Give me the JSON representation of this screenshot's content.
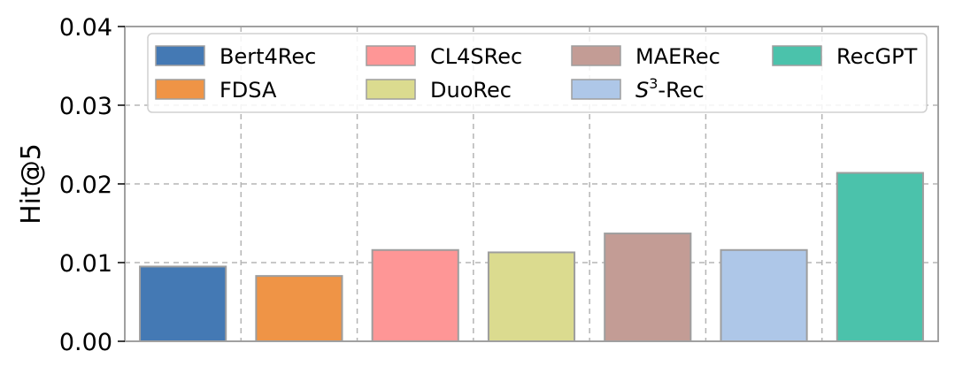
{
  "chart_data": {
    "type": "bar",
    "title": "",
    "xlabel": "",
    "ylabel": "Hit@5",
    "ylim": [
      0,
      0.04
    ],
    "yticks": [
      "0.00",
      "0.01",
      "0.02",
      "0.03",
      "0.04"
    ],
    "grid": true,
    "legend_position": "top",
    "series": [
      {
        "name": "Bert4Rec",
        "value": 0.0095,
        "color": "#4479b4"
      },
      {
        "name": "FDSA",
        "value": 0.0083,
        "color": "#ef9446"
      },
      {
        "name": "CL4SRec",
        "value": 0.0116,
        "color": "#fe9696"
      },
      {
        "name": "DuoRec",
        "value": 0.0113,
        "color": "#dbdb8f"
      },
      {
        "name": "MAERec",
        "value": 0.0137,
        "color": "#c39c95"
      },
      {
        "name": "S3-Rec",
        "value": 0.0116,
        "color": "#aec7e8"
      },
      {
        "name": "RecGPT",
        "value": 0.0214,
        "color": "#4bc2ab"
      }
    ]
  }
}
